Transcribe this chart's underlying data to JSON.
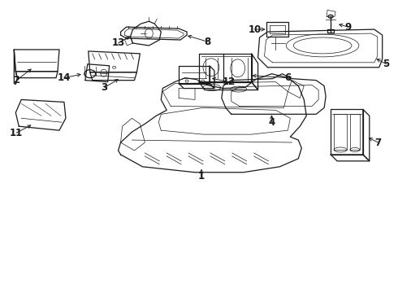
{
  "bg_color": "#ffffff",
  "line_color": "#1a1a1a",
  "lw_main": 0.9,
  "lw_detail": 0.5,
  "figsize": [
    4.9,
    3.6
  ],
  "dpi": 100,
  "label_fontsize": 8.5
}
